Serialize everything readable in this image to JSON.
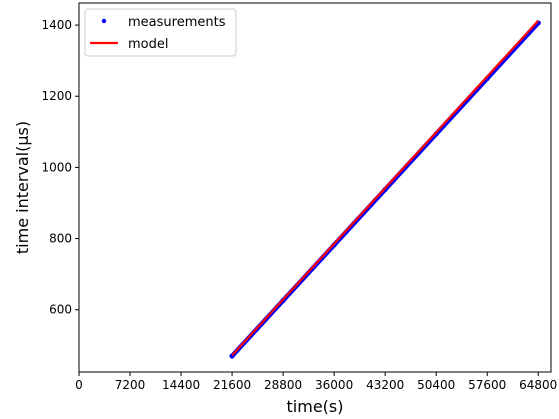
{
  "chart_data": {
    "type": "line",
    "title": "",
    "xlabel": "time(s)",
    "ylabel": "time interval(µs)",
    "xlim": [
      0,
      66600
    ],
    "ylim": [
      425,
      1462
    ],
    "xticks": [
      0,
      7200,
      14400,
      21600,
      28800,
      36000,
      43200,
      50400,
      57600,
      64800
    ],
    "yticks": [
      600,
      800,
      1000,
      1200,
      1400
    ],
    "grid": false,
    "legend": {
      "placement": "top-left"
    },
    "series": [
      {
        "name": "measurements",
        "kind": "scatter",
        "color": "#0000ff",
        "x": [
          21600,
          28800,
          36000,
          43200,
          50400,
          57600,
          64800
        ],
        "y": [
          470,
          626,
          782,
          938,
          1094,
          1250,
          1406
        ]
      },
      {
        "name": "model",
        "kind": "line",
        "color": "#ff0000",
        "x": [
          21600,
          64800
        ],
        "y": [
          472,
          1412
        ]
      }
    ]
  }
}
